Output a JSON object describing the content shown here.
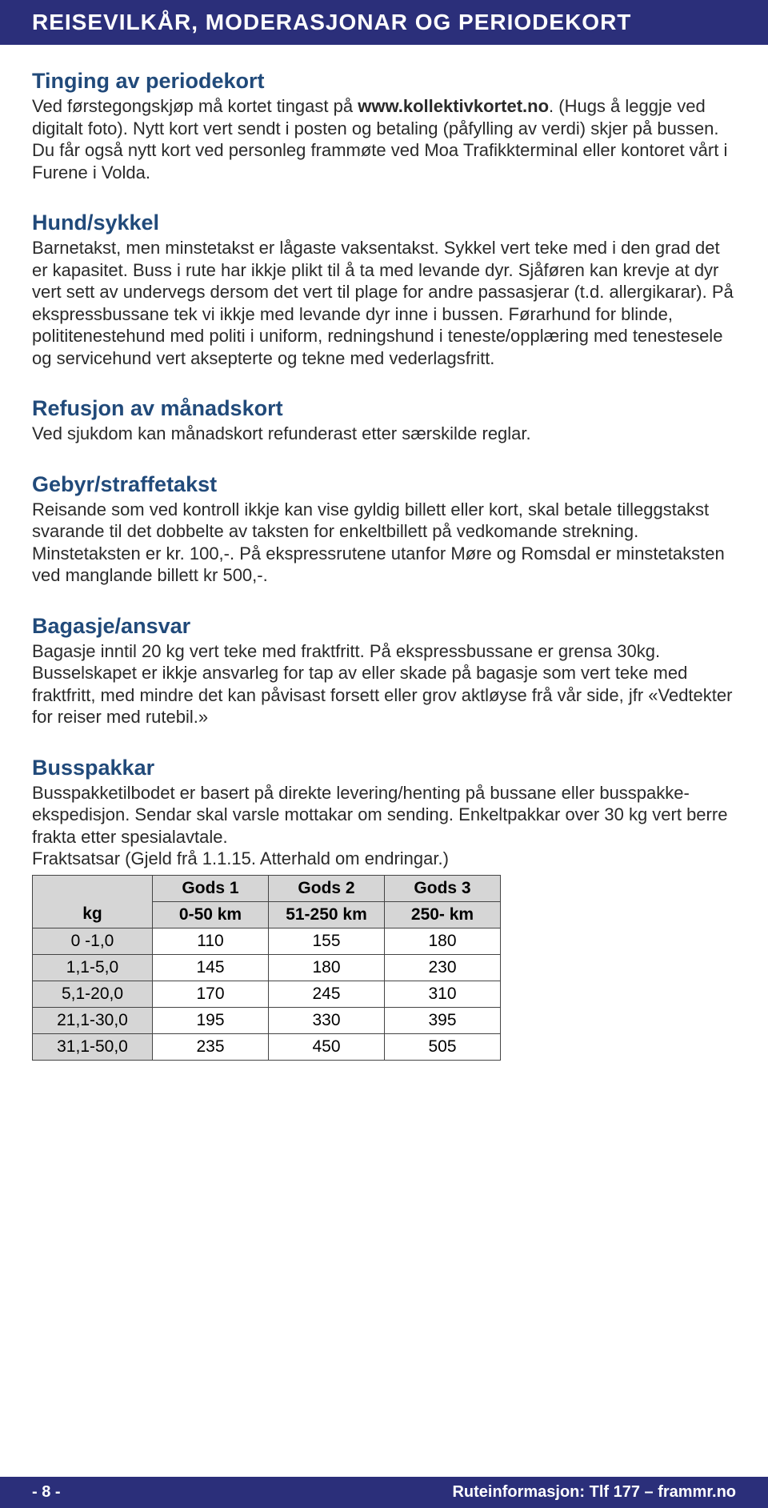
{
  "header": {
    "title": "REISEVILKÅR, MODERASJONAR OG PERIODEKORT"
  },
  "sections": {
    "tinging": {
      "title": "Tinging av periodekort",
      "p1a": "Ved førstegongskjøp må kortet tingast på ",
      "p1b": "www.kollektivkortet.no",
      "p1c": ". (Hugs å leggje ved digitalt foto). Nytt kort vert sendt i posten og betaling (påfylling av verdi) skjer på bussen. Du får også nytt kort ved personleg frammøte ved Moa Trafikkterminal eller kontoret vårt i Furene i Volda."
    },
    "hund": {
      "title": "Hund/sykkel",
      "body": "Barnetakst, men minstetakst er lågaste vaksentakst. Sykkel vert teke med i den grad det er kapasitet. Buss i rute har ikkje plikt til å ta med levande dyr. Sjåføren kan krevje at dyr vert sett av undervegs dersom det vert til plage for andre passasjerar (t.d. allergikarar). På ekspressbussane tek vi ikkje med levande dyr inne i bussen. Førarhund for blinde, polititenestehund med politi i uniform, redningshund i teneste/opplæring med tenestesele og servicehund vert aksepterte og tekne med vederlagsfritt."
    },
    "refusjon": {
      "title": "Refusjon av månadskort",
      "body": "Ved sjukdom kan månadskort refunderast etter særskilde reglar."
    },
    "gebyr": {
      "title": "Gebyr/straffetakst",
      "body": "Reisande som ved kontroll ikkje kan vise gyldig billett eller kort, skal betale tilleggstakst svarande til det dobbelte av taksten for enkeltbillett på vedkomande strekning. Minstetaksten er kr. 100,-. På ekspressrutene utanfor Møre og Romsdal er minstetaksten ved manglande billett kr 500,-."
    },
    "bagasje": {
      "title": "Bagasje/ansvar",
      "body": "Bagasje inntil 20 kg vert teke med fraktfritt. På ekspressbussane er grensa 30kg. Busselskapet er ikkje ansvarleg for tap av eller skade på bagasje som vert teke med fraktfritt, med mindre det kan påvisast forsett eller grov aktløyse frå vår side, jfr «Vedtekter for reiser med rutebil.»"
    },
    "busspakkar": {
      "title": "Busspakkar",
      "body": "Busspakketilbodet er basert på direkte levering/henting på bussane eller busspakke-ekspedisjon. Sendar skal varsle mottakar om sending. Enkeltpakkar over 30 kg vert berre frakta etter spesialavtale.",
      "rates_label": "Fraktsatsar (Gjeld frå 1.1.15. Atterhald om endringar.)"
    }
  },
  "freight_table": {
    "header_row1": [
      "",
      "Gods 1",
      "Gods 2",
      "Gods 3"
    ],
    "header_row2": [
      "kg",
      "0-50 km",
      "51-250 km",
      "250- km"
    ],
    "rows": [
      [
        "0 -1,0",
        "110",
        "155",
        "180"
      ],
      [
        "1,1-5,0",
        "145",
        "180",
        "230"
      ],
      [
        "5,1-20,0",
        "170",
        "245",
        "310"
      ],
      [
        "21,1-30,0",
        "195",
        "330",
        "395"
      ],
      [
        "31,1-50,0",
        "235",
        "450",
        "505"
      ]
    ]
  },
  "footer": {
    "page": "- 8 -",
    "info": "Ruteinformasjon: Tlf 177 – frammr.no"
  }
}
